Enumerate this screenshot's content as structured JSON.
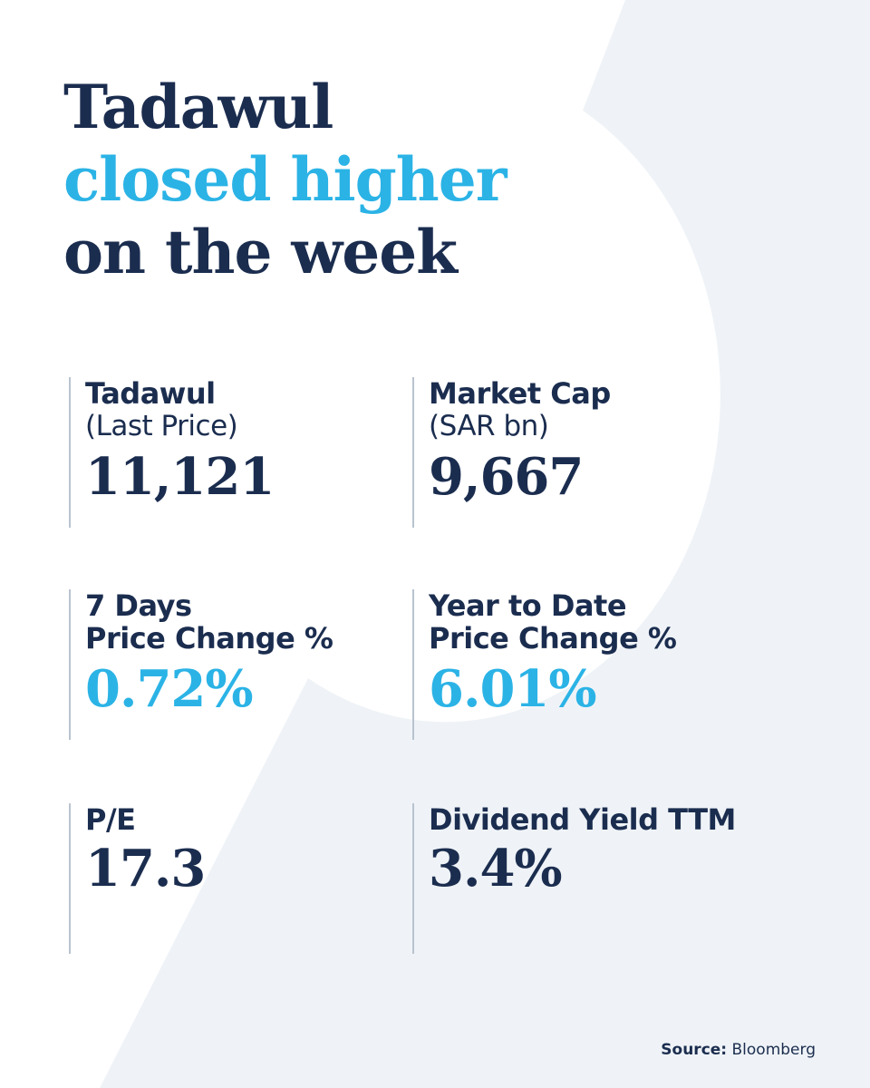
{
  "headline": {
    "line1": "Tadawul",
    "line2": "closed higher",
    "line3": "on the week"
  },
  "stats": [
    {
      "label": "Tadawul",
      "sublabel": "(Last Price)",
      "value": "11,121",
      "value_color": "navy"
    },
    {
      "label": "Market Cap",
      "sublabel": "(SAR bn)",
      "value": "9,667",
      "value_color": "navy"
    },
    {
      "label": "7 Days",
      "sublabel": "Price Change %",
      "value": "0.72%",
      "value_color": "cyan"
    },
    {
      "label": "Year to Date",
      "sublabel": "Price Change %",
      "value": "6.01%",
      "value_color": "cyan"
    },
    {
      "label": "P/E",
      "sublabel": "",
      "value": "17.3",
      "value_color": "navy"
    },
    {
      "label": "Dividend Yield TTM",
      "sublabel": "",
      "value": "3.4%",
      "value_color": "navy"
    }
  ],
  "source": {
    "label": "Source:",
    "name": "Bloomberg"
  },
  "colors": {
    "navy": "#1b2d4f",
    "cyan": "#2bb3e6",
    "background_shape": "#eff3f7",
    "divider": "#b9c3cf"
  }
}
